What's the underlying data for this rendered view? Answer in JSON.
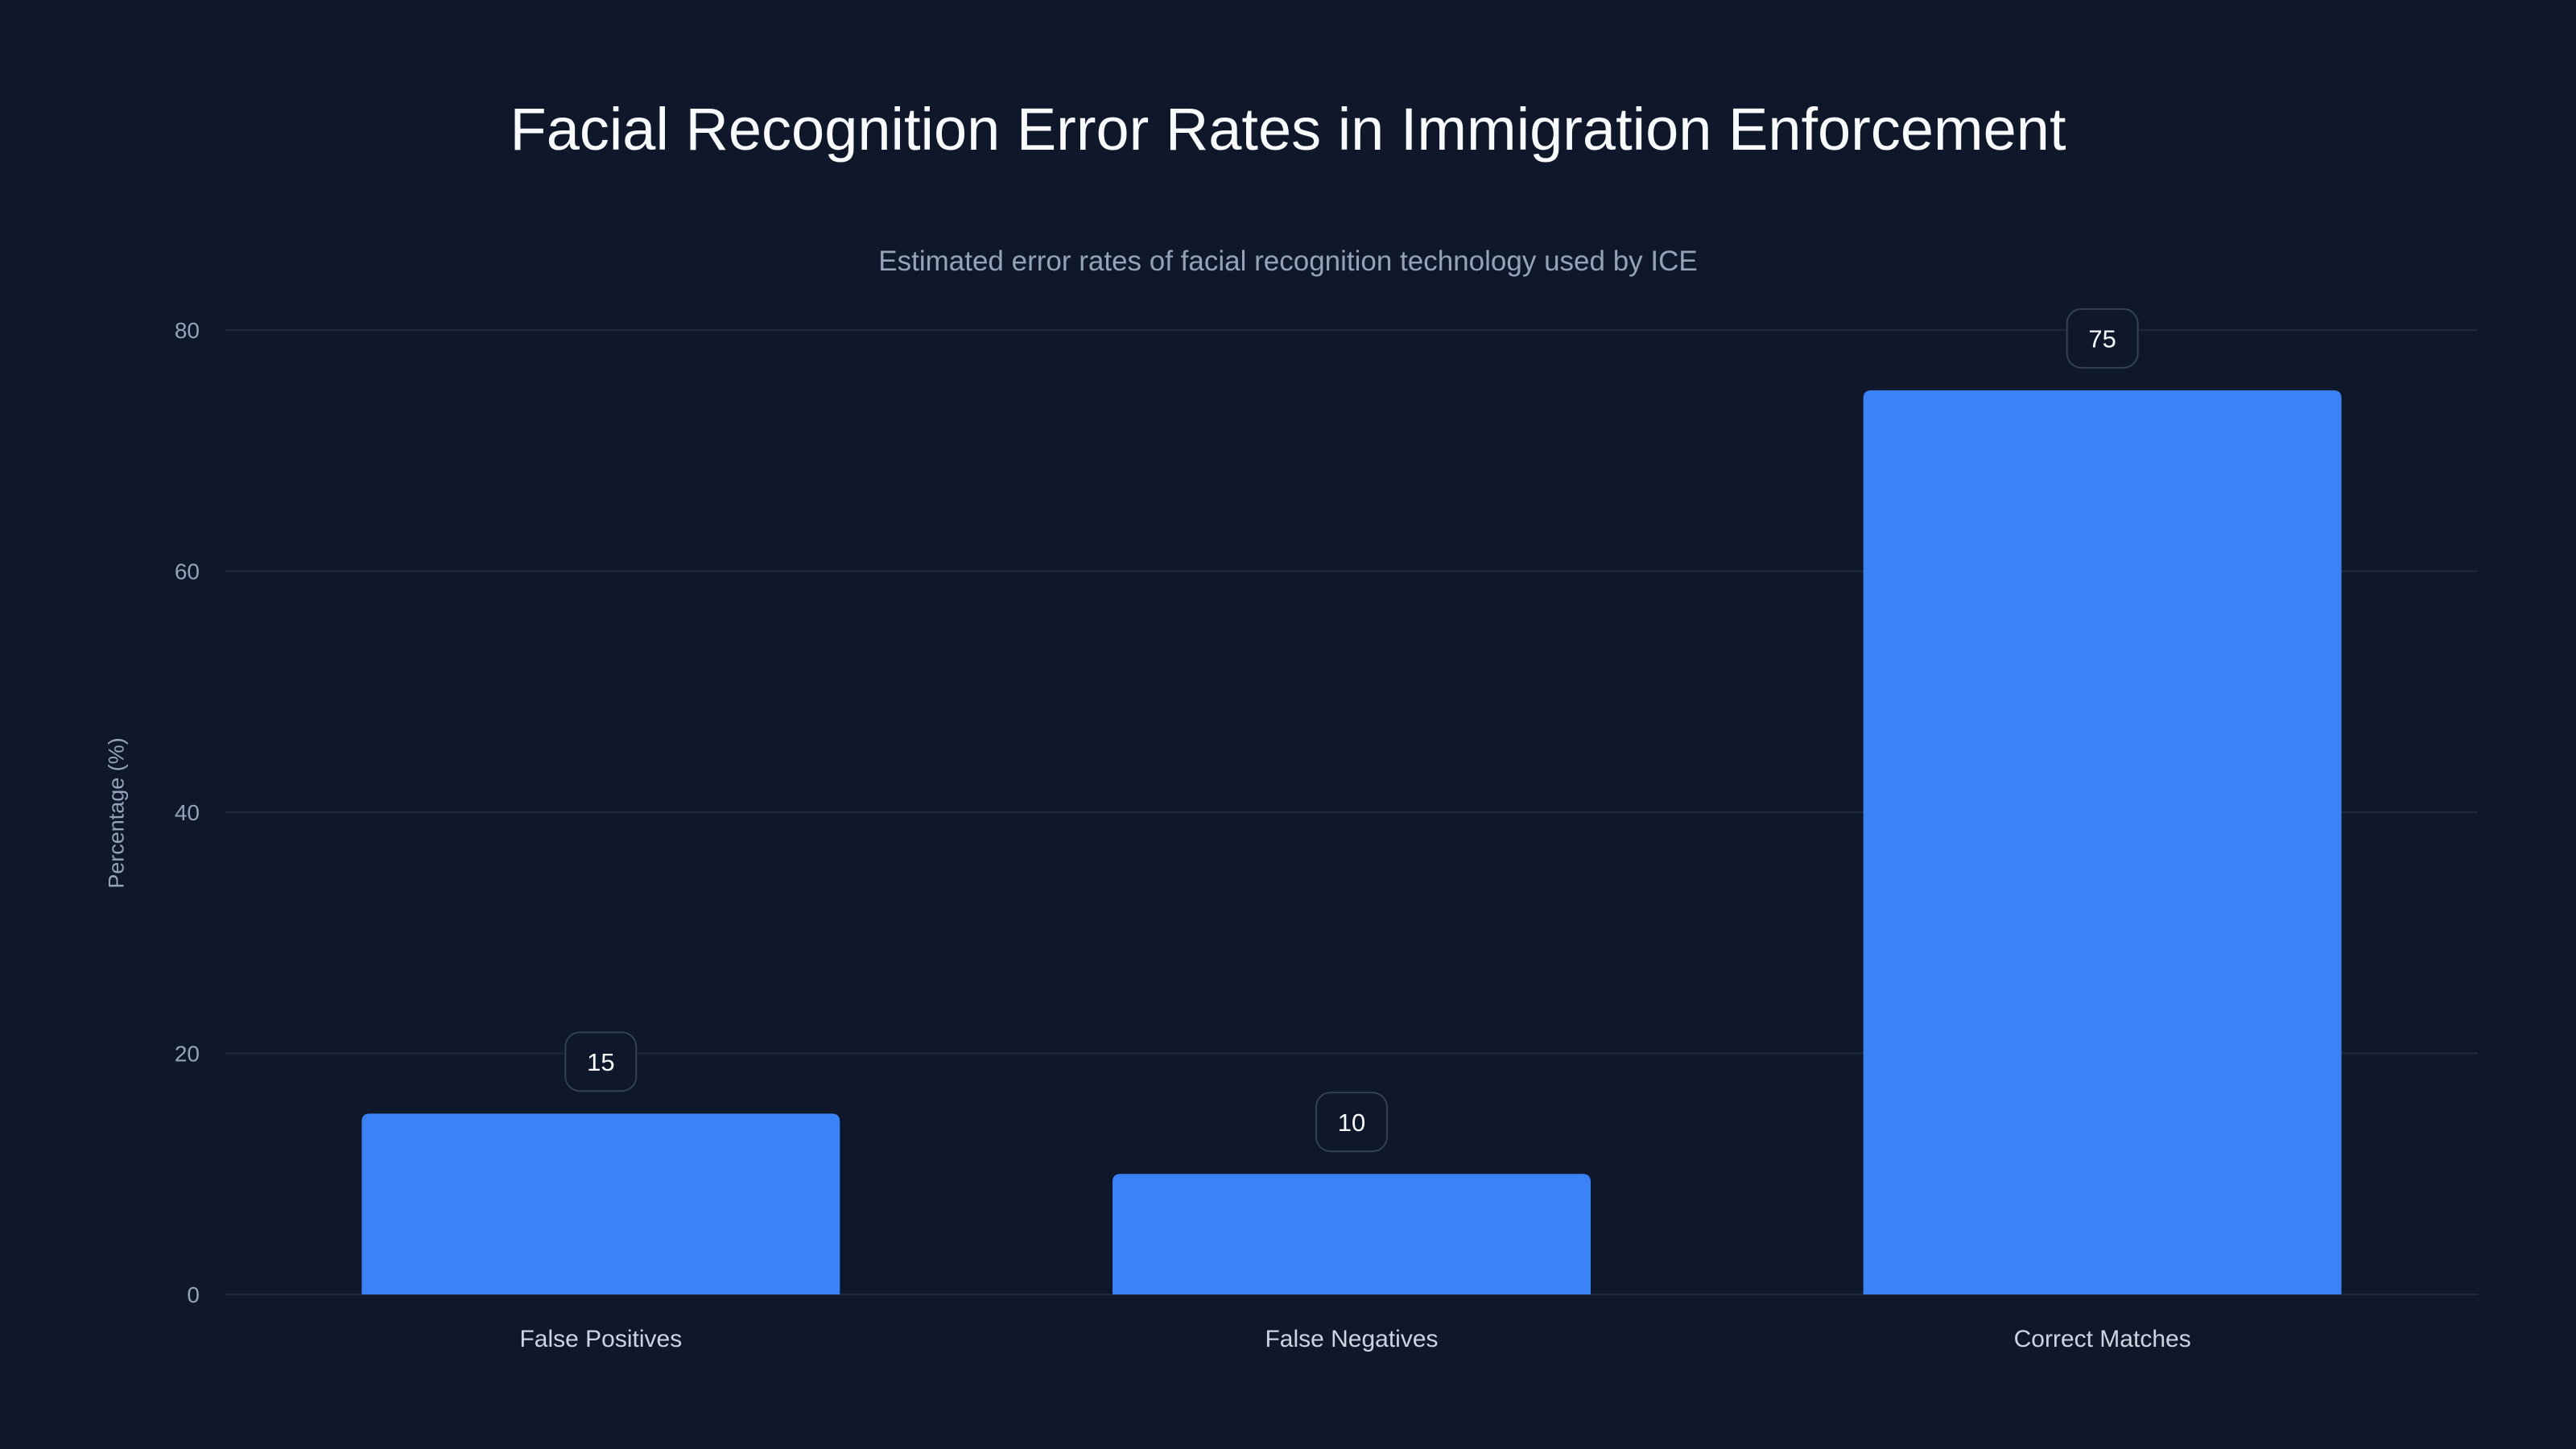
{
  "chart_data": {
    "type": "bar",
    "title": "Facial Recognition Error Rates in Immigration Enforcement",
    "subtitle": "Estimated error rates of facial recognition technology used by ICE",
    "xlabel": "",
    "ylabel": "Percentage (%)",
    "categories": [
      "False Positives",
      "False Negatives",
      "Correct Matches"
    ],
    "values": [
      15,
      10,
      75
    ],
    "data_labels": [
      "15",
      "10",
      "75"
    ],
    "ylim": [
      0,
      80
    ],
    "yticks": [
      0,
      20,
      40,
      60,
      80
    ],
    "ytick_labels": [
      "0",
      "20",
      "40",
      "60",
      "80"
    ],
    "grid": true,
    "colors": {
      "bar": "#3b82f6",
      "background": "#0f182a",
      "grid": "#1e293b",
      "label_border": "#334155"
    }
  }
}
